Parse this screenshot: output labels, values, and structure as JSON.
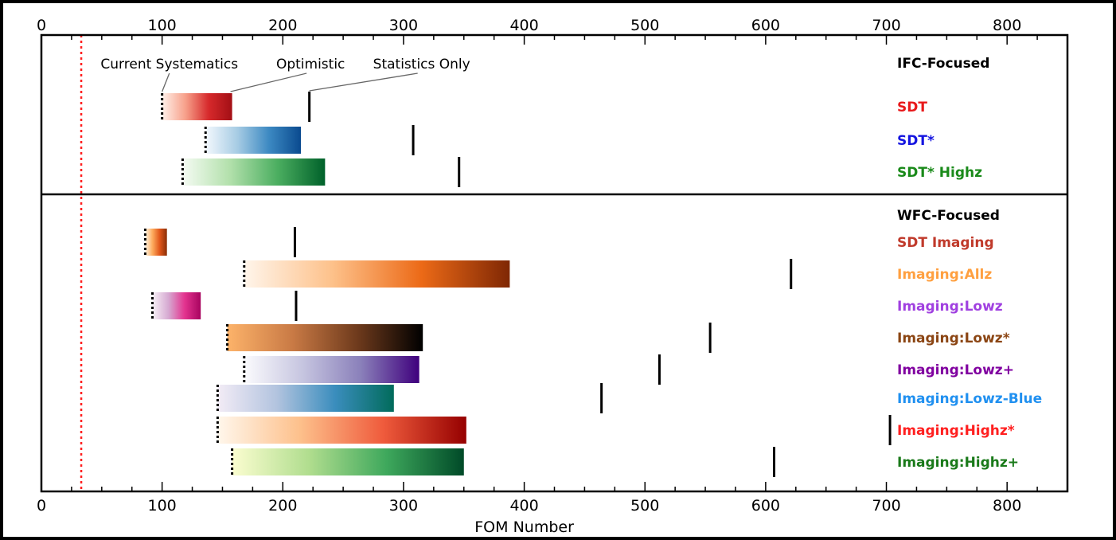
{
  "chart_data": {
    "type": "bar",
    "xlabel": "FOM Number",
    "xlim": [
      0,
      850
    ],
    "xticks": [
      0,
      100,
      200,
      300,
      400,
      500,
      600,
      700,
      800
    ],
    "reference_line": 33,
    "annotations": [
      {
        "text": "Current Systematics",
        "target": "current_systematics"
      },
      {
        "text": "Optimistic",
        "target": "optimistic"
      },
      {
        "text": "Statistics Only",
        "target": "statistics_only"
      }
    ],
    "panels": [
      {
        "title": "IFC-Focused",
        "rows": [
          {
            "label": "SDT",
            "label_color": "#e8191b",
            "current_systematics": 100,
            "optimistic": 158,
            "statistics_only": 222,
            "gradient": [
              "#fff1ea",
              "#f7a08a",
              "#d6292b",
              "#a30f15"
            ]
          },
          {
            "label": "SDT*",
            "label_color": "#1515e0",
            "current_systematics": 136,
            "optimistic": 215,
            "statistics_only": 308,
            "gradient": [
              "#f3f8fd",
              "#a7cce4",
              "#3c89c2",
              "#0a4a8f"
            ]
          },
          {
            "label": "SDT* Highz",
            "label_color": "#1a8a1a",
            "current_systematics": 117,
            "optimistic": 235,
            "statistics_only": 346,
            "gradient": [
              "#f5fbf3",
              "#b2e0ab",
              "#4bae60",
              "#00612a"
            ]
          }
        ]
      },
      {
        "title": "WFC-Focused",
        "rows": [
          {
            "label": "SDT Imaging",
            "label_color": "#c03a2b",
            "current_systematics": 86,
            "optimistic": 104,
            "statistics_only": 210,
            "gradient": [
              "#fff3e2",
              "#fdac5e",
              "#e0561a",
              "#8a2f07"
            ]
          },
          {
            "label": "Imaging:Allz",
            "label_color": "#ffa040",
            "current_systematics": 168,
            "optimistic": 388,
            "statistics_only": 621,
            "gradient": [
              "#fff5eb",
              "#fdc18a",
              "#ec6a17",
              "#7f2704"
            ]
          },
          {
            "label": "Imaging:Lowz",
            "label_color": "#a040e0",
            "current_systematics": 92,
            "optimistic": 132,
            "statistics_only": 211,
            "gradient": [
              "#f7f1f7",
              "#d6a9d1",
              "#e3338f",
              "#a8045f"
            ]
          },
          {
            "label": "Imaging:Lowz*",
            "label_color": "#8b4513",
            "current_systematics": 154,
            "optimistic": 316,
            "statistics_only": 554,
            "gradient": [
              "#fdb36a",
              "#c97a45",
              "#6e3a1c",
              "#000000"
            ]
          },
          {
            "label": "Imaging:Lowz+",
            "label_color": "#8000a0",
            "current_systematics": 168,
            "optimistic": 313,
            "statistics_only": 512,
            "gradient": [
              "#fbfbfd",
              "#c6c5e0",
              "#8a80ba",
              "#3f007d"
            ]
          },
          {
            "label": "Imaging:Lowz-Blue",
            "label_color": "#2090f0",
            "current_systematics": 146,
            "optimistic": 292,
            "statistics_only": 464,
            "gradient": [
              "#f3ecf6",
              "#b3c4df",
              "#3a8dbd",
              "#016b5b"
            ]
          },
          {
            "label": "Imaging:Highz*",
            "label_color": "#ff2020",
            "current_systematics": 146,
            "optimistic": 352,
            "statistics_only": 703,
            "gradient": [
              "#fff7ec",
              "#fdc08b",
              "#ef5b3c",
              "#950000"
            ]
          },
          {
            "label": "Imaging:Highz+",
            "label_color": "#1a7a1a",
            "current_systematics": 158,
            "optimistic": 350,
            "statistics_only": 607,
            "gradient": [
              "#fbfdd0",
              "#b0dd8e",
              "#3ea85c",
              "#004a28"
            ]
          }
        ]
      }
    ]
  }
}
